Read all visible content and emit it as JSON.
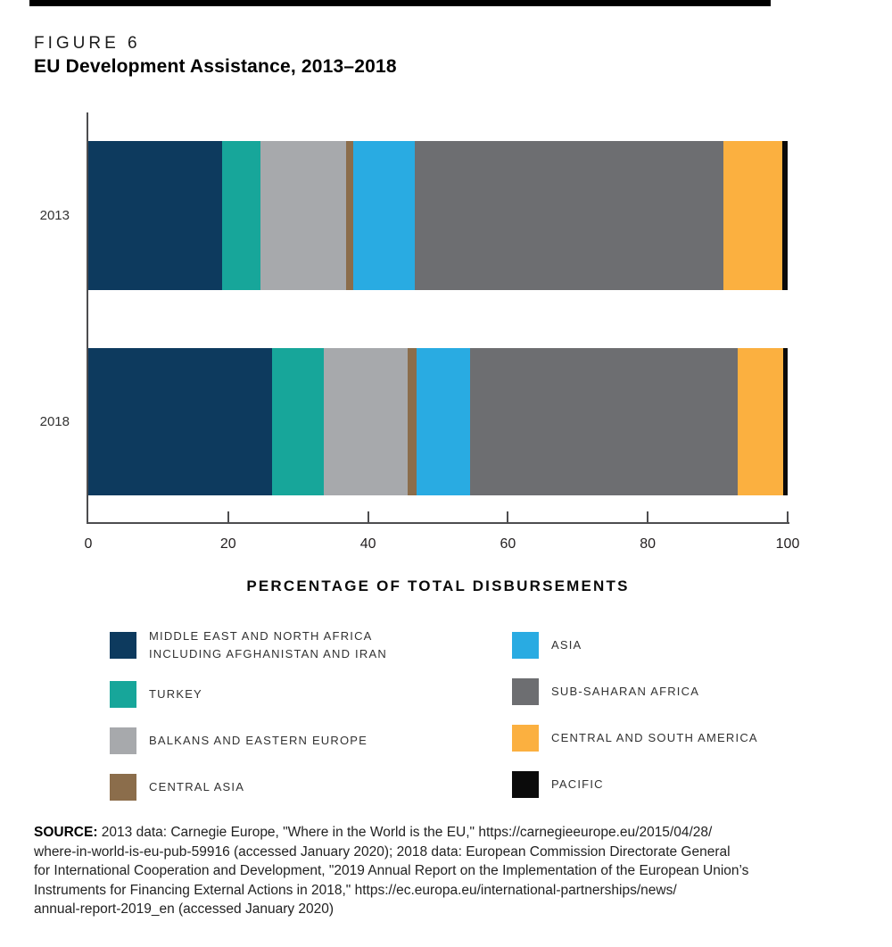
{
  "header": {
    "figure_label": "FIGURE 6",
    "title": "EU Development Assistance, 2013–2018"
  },
  "chart_data": {
    "type": "bar",
    "orientation": "horizontal",
    "stacked": true,
    "title": "EU Development Assistance, 2013–2018",
    "xlabel": "PERCENTAGE OF TOTAL DISBURSEMENTS",
    "ylabel": "",
    "xlim": [
      0,
      100
    ],
    "xticks": [
      0,
      20,
      40,
      60,
      80,
      100
    ],
    "grid": false,
    "legend_position": "bottom-two-columns",
    "categories": [
      "2013",
      "2018"
    ],
    "series": [
      {
        "name": "MIDDLE EAST AND NORTH AFRICA INCLUDING AFGHANISTAN AND IRAN",
        "color": "#0d3a5e",
        "values": [
          19.1,
          26.3
        ]
      },
      {
        "name": "TURKEY",
        "color": "#17a69a",
        "values": [
          5.5,
          7.4
        ]
      },
      {
        "name": "BALKANS AND EASTERN EUROPE",
        "color": "#a7a9ac",
        "values": [
          12.2,
          12.0
        ]
      },
      {
        "name": "CENTRAL ASIA",
        "color": "#8b6d4b",
        "values": [
          1.1,
          1.2
        ]
      },
      {
        "name": "ASIA",
        "color": "#29abe2",
        "values": [
          8.8,
          7.7
        ]
      },
      {
        "name": "SUB-SAHARAN AFRICA",
        "color": "#6d6e71",
        "values": [
          44.1,
          38.3
        ]
      },
      {
        "name": "CENTRAL AND SOUTH AMERICA",
        "color": "#fbb040",
        "values": [
          8.4,
          6.5
        ]
      },
      {
        "name": "PACIFIC",
        "color": "#0b0b0b",
        "values": [
          0.8,
          0.6
        ]
      }
    ]
  },
  "legend": {
    "columns": [
      {
        "items": [
          {
            "swatch": "#0d3a5e",
            "lines": [
              "MIDDLE EAST AND NORTH AFRICA",
              "INCLUDING AFGHANISTAN AND IRAN"
            ]
          },
          {
            "swatch": "#17a69a",
            "lines": [
              "TURKEY"
            ]
          },
          {
            "swatch": "#a7a9ac",
            "lines": [
              "BALKANS AND EASTERN EUROPE"
            ]
          },
          {
            "swatch": "#8b6d4b",
            "lines": [
              "CENTRAL ASIA"
            ]
          }
        ]
      },
      {
        "items": [
          {
            "swatch": "#29abe2",
            "lines": [
              "ASIA"
            ]
          },
          {
            "swatch": "#6d6e71",
            "lines": [
              "SUB-SAHARAN AFRICA"
            ]
          },
          {
            "swatch": "#fbb040",
            "lines": [
              "CENTRAL AND SOUTH AMERICA"
            ]
          },
          {
            "swatch": "#0b0b0b",
            "lines": [
              "PACIFIC"
            ]
          }
        ]
      }
    ]
  },
  "source": {
    "label": "SOURCE:",
    "lines": [
      "2013 data: Carnegie Europe, \"Where in the World is the EU,\" https://carnegieeurope.eu/2015/04/28/",
      "where-in-world-is-eu-pub-59916 (accessed January 2020); 2018 data: European Commission Directorate General",
      "for International Cooperation and Development, \"2019 Annual Report on the Implementation of the European Union’s",
      "Instruments for Financing External Actions in 2018,\" https://ec.europa.eu/international-partnerships/news/",
      "annual-report-2019_en (accessed January 2020)"
    ]
  }
}
